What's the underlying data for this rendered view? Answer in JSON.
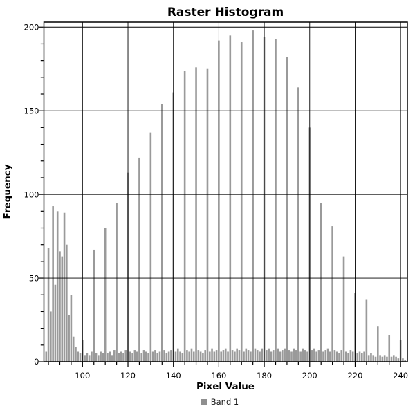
{
  "title": "Raster Histogram",
  "x_axis": {
    "label": "Pixel Value",
    "min": 83,
    "max": 243,
    "major_ticks": [
      100,
      120,
      140,
      160,
      180,
      200,
      220,
      240
    ],
    "minor_tick_step": 5
  },
  "y_axis": {
    "label": "Frequency",
    "min": 0,
    "max": 203,
    "major_ticks": [
      0,
      50,
      100,
      150,
      200
    ],
    "minor_tick_step": 10
  },
  "legend": {
    "label": "Band 1",
    "swatch_color": "#8f8f8f"
  },
  "colors": {
    "bar": "#9a9a9a",
    "grid": "#000000",
    "axis": "#000000",
    "background": "#ffffff",
    "text": "#000000"
  },
  "chart_data": {
    "type": "bar",
    "title": "Raster Histogram",
    "xlabel": "Pixel Value",
    "ylabel": "Frequency",
    "xlim": [
      83,
      243
    ],
    "ylim": [
      0,
      203
    ],
    "grid": true,
    "legend_position": "bottom",
    "series": [
      {
        "name": "Band 1",
        "color": "#9a9a9a",
        "x_start": 84,
        "x_step": 1,
        "values": [
          6,
          68,
          30,
          93,
          46,
          90,
          66,
          63,
          89,
          70,
          28,
          40,
          15,
          9,
          6,
          5,
          13,
          4,
          5,
          4,
          6,
          67,
          5,
          4,
          6,
          5,
          80,
          5,
          6,
          4,
          7,
          95,
          5,
          6,
          5,
          7,
          113,
          6,
          5,
          7,
          6,
          122,
          5,
          7,
          6,
          5,
          137,
          6,
          7,
          5,
          6,
          154,
          7,
          5,
          6,
          7,
          161,
          6,
          8,
          6,
          5,
          174,
          7,
          6,
          8,
          6,
          176,
          7,
          6,
          5,
          7,
          175,
          6,
          8,
          6,
          7,
          192,
          6,
          7,
          8,
          6,
          195,
          7,
          6,
          8,
          7,
          191,
          6,
          8,
          7,
          6,
          198,
          8,
          7,
          6,
          8,
          194,
          7,
          8,
          6,
          7,
          193,
          8,
          6,
          7,
          8,
          182,
          7,
          6,
          8,
          7,
          164,
          6,
          8,
          7,
          6,
          140,
          7,
          8,
          6,
          7,
          95,
          6,
          7,
          8,
          6,
          81,
          7,
          6,
          5,
          7,
          63,
          6,
          5,
          7,
          6,
          41,
          5,
          6,
          5,
          6,
          37,
          4,
          5,
          4,
          3,
          21,
          4,
          3,
          4,
          3,
          16,
          3,
          4,
          3,
          2,
          13,
          2,
          1
        ]
      }
    ],
    "notable_peaks": {
      "87": 93,
      "89": 90,
      "92": 89,
      "105": 67,
      "110": 80,
      "115": 95,
      "120": 113,
      "125": 122,
      "130": 137,
      "135": 154,
      "140": 161,
      "145": 174,
      "150": 176,
      "155": 175,
      "160": 192,
      "165": 195,
      "170": 191,
      "175": 198,
      "180": 194,
      "185": 193,
      "190": 182,
      "195": 164,
      "200": 140,
      "205": 95,
      "210": 81,
      "215": 63,
      "220": 41,
      "225": 37,
      "230": 21,
      "235": 16,
      "240": 13
    }
  }
}
